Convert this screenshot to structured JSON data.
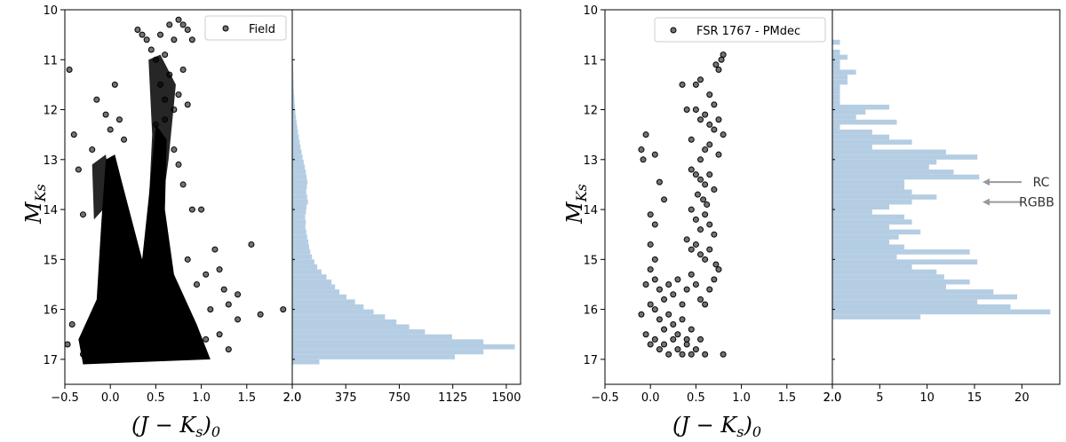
{
  "chart_data": [
    {
      "type": "scatter",
      "panel": "left-cmd",
      "series": [
        {
          "name": "Field",
          "marker_color": "#000000"
        }
      ],
      "legend_label": "Field",
      "legend_position": "top-right",
      "xlabel": "(J − K_s)_0",
      "ylabel": "M_Ks",
      "xlim": [
        -0.5,
        2.0
      ],
      "ylim": [
        17.5,
        10
      ],
      "x_ticks": [
        -0.5,
        0.0,
        0.5,
        1.0,
        1.5,
        2.0
      ],
      "x_tick_labels": [
        "−0.5",
        "0.0",
        "0.5",
        "1.0",
        "1.5",
        "2.0"
      ],
      "y_ticks": [
        10,
        11,
        12,
        13,
        14,
        15,
        16,
        17
      ],
      "points": [
        [
          -0.45,
          11.2
        ],
        [
          -0.4,
          12.5
        ],
        [
          -0.35,
          13.2
        ],
        [
          -0.3,
          14.1
        ],
        [
          -0.42,
          16.3
        ],
        [
          -0.47,
          16.7
        ],
        [
          -0.3,
          16.9
        ],
        [
          -0.2,
          12.8
        ],
        [
          -0.15,
          11.8
        ],
        [
          -0.05,
          12.1
        ],
        [
          0.0,
          12.4
        ],
        [
          0.05,
          11.5
        ],
        [
          0.1,
          12.2
        ],
        [
          0.15,
          12.6
        ],
        [
          0.3,
          10.4
        ],
        [
          0.35,
          10.5
        ],
        [
          0.4,
          10.6
        ],
        [
          0.45,
          10.8
        ],
        [
          0.5,
          11.0
        ],
        [
          0.55,
          10.5
        ],
        [
          0.6,
          10.9
        ],
        [
          0.65,
          10.3
        ],
        [
          0.7,
          10.6
        ],
        [
          0.75,
          10.2
        ],
        [
          0.8,
          10.3
        ],
        [
          0.85,
          10.4
        ],
        [
          0.9,
          10.6
        ],
        [
          0.55,
          11.5
        ],
        [
          0.6,
          11.8
        ],
        [
          0.65,
          11.3
        ],
        [
          0.7,
          12.0
        ],
        [
          0.75,
          11.7
        ],
        [
          0.8,
          11.2
        ],
        [
          0.85,
          11.9
        ],
        [
          0.5,
          12.3
        ],
        [
          0.55,
          12.6
        ],
        [
          0.6,
          12.2
        ],
        [
          0.7,
          12.8
        ],
        [
          0.75,
          13.1
        ],
        [
          0.8,
          13.5
        ],
        [
          0.9,
          14.0
        ],
        [
          1.0,
          14.0
        ],
        [
          1.15,
          14.8
        ],
        [
          1.2,
          15.2
        ],
        [
          1.3,
          15.9
        ],
        [
          1.4,
          16.2
        ],
        [
          1.55,
          14.7
        ],
        [
          1.65,
          16.1
        ],
        [
          1.1,
          16.0
        ],
        [
          1.2,
          16.5
        ],
        [
          1.3,
          16.8
        ],
        [
          1.0,
          16.9
        ],
        [
          1.9,
          16.0
        ],
        [
          1.25,
          15.6
        ],
        [
          1.4,
          15.7
        ],
        [
          0.85,
          15.0
        ],
        [
          0.95,
          15.5
        ],
        [
          1.05,
          15.3
        ],
        [
          0.9,
          16.4
        ],
        [
          1.05,
          16.6
        ]
      ]
    },
    {
      "type": "bar",
      "orientation": "horizontal",
      "panel": "left-hist",
      "color": "#b4cde3",
      "xlim": [
        0,
        1600
      ],
      "x_ticks": [
        0,
        375,
        750,
        1125,
        1500
      ],
      "x_tick_labels": [
        "2.0",
        "375",
        "750",
        "1125",
        "1500"
      ],
      "bin_width": 0.1,
      "bin_lower_edges": [
        10.9,
        11.0,
        11.1,
        11.2,
        11.3,
        11.4,
        11.5,
        11.6,
        11.7,
        11.8,
        11.9,
        12.0,
        12.1,
        12.2,
        12.3,
        12.4,
        12.5,
        12.6,
        12.7,
        12.8,
        12.9,
        13.0,
        13.1,
        13.2,
        13.3,
        13.4,
        13.5,
        13.6,
        13.7,
        13.8,
        13.9,
        14.0,
        14.1,
        14.2,
        14.3,
        14.4,
        14.5,
        14.6,
        14.7,
        14.8,
        14.9,
        15.0,
        15.1,
        15.2,
        15.3,
        15.4,
        15.5,
        15.6,
        15.7,
        15.8,
        15.9,
        16.0,
        16.1,
        16.2,
        16.3,
        16.4,
        16.5,
        16.6,
        16.7,
        16.8,
        16.9,
        17.0
      ],
      "values": [
        4,
        5,
        6,
        7,
        8,
        9,
        10,
        12,
        14,
        16,
        19,
        22,
        26,
        30,
        35,
        40,
        46,
        52,
        58,
        65,
        72,
        80,
        88,
        95,
        100,
        106,
        102,
        98,
        105,
        110,
        100,
        96,
        90,
        95,
        92,
        98,
        105,
        112,
        118,
        126,
        138,
        155,
        175,
        205,
        240,
        275,
        300,
        330,
        380,
        440,
        500,
        570,
        650,
        730,
        820,
        930,
        1120,
        1340,
        1560,
        1340,
        1140,
        190
      ]
    },
    {
      "type": "scatter",
      "panel": "right-cmd",
      "series": [
        {
          "name": "FSR 1767 - PMdec",
          "marker_color": "#000000"
        }
      ],
      "legend_label": "FSR 1767 - PMdec",
      "legend_position": "top-right",
      "xlabel": "(J − K_s)_0",
      "ylabel": "M_Ks",
      "xlim": [
        -0.5,
        2.0
      ],
      "ylim": [
        17.5,
        10
      ],
      "x_ticks": [
        -0.5,
        0.0,
        0.5,
        1.0,
        1.5,
        2.0
      ],
      "x_tick_labels": [
        "−0.5",
        "0.0",
        "0.5",
        "1.0",
        "1.5",
        "2.0"
      ],
      "y_ticks": [
        10,
        11,
        12,
        13,
        14,
        15,
        16,
        17
      ],
      "points": [
        [
          0.8,
          10.9
        ],
        [
          0.78,
          11.0
        ],
        [
          0.75,
          11.2
        ],
        [
          0.72,
          11.1
        ],
        [
          0.35,
          11.5
        ],
        [
          0.5,
          11.5
        ],
        [
          0.55,
          11.4
        ],
        [
          0.65,
          11.7
        ],
        [
          0.7,
          11.9
        ],
        [
          0.5,
          12.0
        ],
        [
          0.55,
          12.2
        ],
        [
          0.6,
          12.1
        ],
        [
          0.65,
          12.3
        ],
        [
          0.7,
          12.4
        ],
        [
          0.75,
          12.2
        ],
        [
          0.8,
          12.5
        ],
        [
          0.4,
          12.0
        ],
        [
          0.45,
          12.6
        ],
        [
          -0.05,
          12.5
        ],
        [
          0.6,
          12.8
        ],
        [
          0.65,
          12.7
        ],
        [
          0.75,
          12.9
        ],
        [
          0.55,
          13.0
        ],
        [
          -0.1,
          12.8
        ],
        [
          -0.08,
          13.0
        ],
        [
          0.05,
          12.9
        ],
        [
          0.45,
          13.2
        ],
        [
          0.5,
          13.3
        ],
        [
          0.55,
          13.4
        ],
        [
          0.6,
          13.5
        ],
        [
          0.65,
          13.3
        ],
        [
          0.7,
          13.6
        ],
        [
          0.52,
          13.7
        ],
        [
          0.58,
          13.8
        ],
        [
          0.62,
          13.9
        ],
        [
          0.1,
          13.45
        ],
        [
          0.15,
          13.8
        ],
        [
          0.0,
          14.1
        ],
        [
          0.05,
          14.3
        ],
        [
          0.45,
          14.0
        ],
        [
          0.5,
          14.2
        ],
        [
          0.55,
          14.4
        ],
        [
          0.6,
          14.1
        ],
        [
          0.65,
          14.3
        ],
        [
          0.7,
          14.5
        ],
        [
          0.4,
          14.6
        ],
        [
          0.45,
          14.8
        ],
        [
          0.5,
          14.7
        ],
        [
          0.55,
          14.9
        ],
        [
          0.6,
          15.0
        ],
        [
          0.65,
          14.8
        ],
        [
          0.72,
          15.1
        ],
        [
          0.0,
          14.7
        ],
        [
          0.05,
          15.0
        ],
        [
          0.0,
          15.2
        ],
        [
          -0.05,
          15.5
        ],
        [
          0.05,
          15.4
        ],
        [
          0.1,
          15.6
        ],
        [
          0.15,
          15.8
        ],
        [
          0.2,
          15.5
        ],
        [
          0.25,
          15.7
        ],
        [
          0.3,
          15.4
        ],
        [
          0.35,
          15.9
        ],
        [
          0.4,
          15.6
        ],
        [
          0.45,
          15.3
        ],
        [
          0.5,
          15.5
        ],
        [
          0.55,
          15.8
        ],
        [
          0.6,
          15.9
        ],
        [
          0.65,
          15.6
        ],
        [
          0.7,
          15.4
        ],
        [
          0.75,
          15.2
        ],
        [
          0.0,
          15.9
        ],
        [
          -0.1,
          16.1
        ],
        [
          0.05,
          16.0
        ],
        [
          0.1,
          16.2
        ],
        [
          0.15,
          16.4
        ],
        [
          0.2,
          16.1
        ],
        [
          0.25,
          16.3
        ],
        [
          0.3,
          16.5
        ],
        [
          0.35,
          16.2
        ],
        [
          0.4,
          16.6
        ],
        [
          0.45,
          16.4
        ],
        [
          0.05,
          16.6
        ],
        [
          0.1,
          16.8
        ],
        [
          0.15,
          16.7
        ],
        [
          0.2,
          16.9
        ],
        [
          0.25,
          16.6
        ],
        [
          0.3,
          16.8
        ],
        [
          0.35,
          16.9
        ],
        [
          0.4,
          16.7
        ],
        [
          0.45,
          16.9
        ],
        [
          0.5,
          16.8
        ],
        [
          0.55,
          16.6
        ],
        [
          0.6,
          16.9
        ],
        [
          0.8,
          16.9
        ],
        [
          0.0,
          16.7
        ],
        [
          -0.05,
          16.5
        ]
      ]
    },
    {
      "type": "bar",
      "orientation": "horizontal",
      "panel": "right-hist",
      "color": "#b4cde3",
      "xlim": [
        0,
        24
      ],
      "x_ticks": [
        0,
        5,
        10,
        15,
        20
      ],
      "x_tick_labels": [
        "2.0",
        "5",
        "10",
        "15",
        "20"
      ],
      "bin_width": 0.1,
      "bin_lower_edges": [
        10.6,
        10.8,
        10.9,
        11.0,
        11.1,
        11.2,
        11.3,
        11.4,
        11.5,
        11.6,
        11.7,
        11.8,
        11.9,
        12.0,
        12.1,
        12.2,
        12.3,
        12.4,
        12.5,
        12.6,
        12.7,
        12.8,
        12.9,
        13.0,
        13.1,
        13.2,
        13.3,
        13.4,
        13.5,
        13.6,
        13.7,
        13.8,
        13.9,
        14.0,
        14.1,
        14.2,
        14.3,
        14.4,
        14.5,
        14.6,
        14.7,
        14.8,
        14.9,
        15.0,
        15.1,
        15.2,
        15.3,
        15.4,
        15.5,
        15.6,
        15.7,
        15.8,
        15.9,
        16.0,
        16.1,
        16.2,
        16.3,
        16.4,
        16.5,
        16.6,
        16.7,
        16.8,
        16.9,
        17.0
      ],
      "values": [
        0.8,
        0.8,
        1.6,
        0.8,
        0.8,
        2.5,
        1.6,
        1.6,
        0.8,
        0.8,
        0.8,
        0.8,
        6.0,
        3.5,
        2.5,
        6.8,
        0.8,
        4.2,
        6.0,
        8.4,
        4.2,
        12.0,
        15.3,
        11.0,
        10.2,
        12.8,
        15.5,
        7.6,
        7.6,
        8.4,
        11.0,
        8.4,
        6.0,
        4.2,
        7.6,
        8.4,
        6.0,
        9.3,
        7.0,
        6.0,
        7.6,
        14.5,
        6.8,
        15.3,
        8.4,
        11.0,
        11.8,
        14.5,
        12.0,
        17.0,
        19.5,
        15.3,
        18.8,
        23.0,
        9.3,
        0,
        0,
        0,
        0,
        0,
        0,
        0,
        0,
        0
      ],
      "annotations": [
        {
          "text": "RC",
          "y": 13.45
        },
        {
          "text": "RGBB",
          "y": 13.85
        }
      ]
    }
  ],
  "text": {
    "ylabel_left": "M",
    "ylabel_left_sub": "Ks",
    "ylabel_right": "M",
    "ylabel_right_sub": "Ks",
    "xlabel_left": "(J − K",
    "xlabel_left_sub1": "s",
    "xlabel_left_close": ")",
    "xlabel_left_sub2": "0",
    "xlabel_right": "(J − K",
    "xlabel_right_sub1": "s",
    "xlabel_right_close": ")",
    "xlabel_right_sub2": "0"
  }
}
